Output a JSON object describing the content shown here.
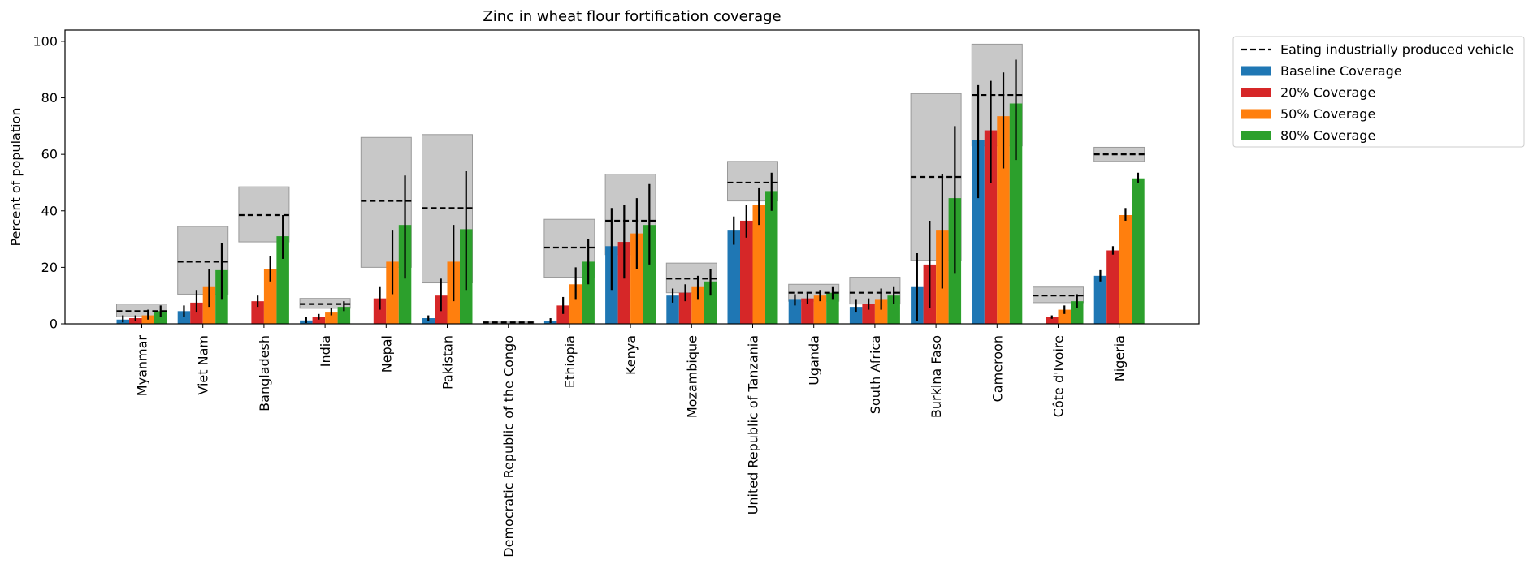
{
  "chart_data": {
    "type": "bar",
    "title": "Zinc in wheat flour fortification coverage",
    "xlabel": "",
    "ylabel": "Percent of population",
    "ylim": [
      0,
      104
    ],
    "yticks": [
      0,
      20,
      40,
      60,
      80,
      100
    ],
    "grid": false,
    "legend_position": "outside-top-right",
    "categories": [
      "Myanmar",
      "Viet Nam",
      "Bangladesh",
      "India",
      "Nepal",
      "Pakistan",
      "Democratic Republic of the Congo",
      "Ethiopia",
      "Kenya",
      "Mozambique",
      "United Republic of Tanzania",
      "Uganda",
      "South Africa",
      "Burkina Faso",
      "Cameroon",
      "Côte d'Ivoire",
      "Nigeria"
    ],
    "reference": {
      "name": "Eating industrially produced vehicle",
      "color": "#000000",
      "band_color": "#c8c8c8",
      "values": [
        4.5,
        22,
        38.5,
        7,
        43.5,
        41,
        0.5,
        27,
        36.5,
        16,
        50,
        11,
        11,
        52,
        81,
        10,
        60
      ],
      "lower": [
        2.5,
        10.5,
        29,
        5.5,
        20,
        14.5,
        0.3,
        16.5,
        24.5,
        11,
        43.5,
        8,
        7,
        22.5,
        63,
        7.5,
        57.5
      ],
      "upper": [
        7,
        34.5,
        48.5,
        9,
        66,
        67,
        0.9,
        37,
        53,
        21.5,
        57.5,
        14,
        16.5,
        81.5,
        99,
        13,
        62.5
      ]
    },
    "series": [
      {
        "name": "Baseline Coverage",
        "color": "#1f77b4",
        "values": [
          1.5,
          4.5,
          0,
          1.2,
          0,
          2,
          0,
          1,
          27.5,
          10,
          33,
          8.5,
          6,
          13,
          65,
          0,
          17
        ],
        "err_low": [
          0.5,
          2.5,
          0,
          0.3,
          0,
          1,
          0,
          0.3,
          12,
          7.5,
          28,
          6.5,
          4,
          1,
          44.5,
          0,
          15
        ],
        "err_high": [
          3,
          6.5,
          0,
          2.5,
          0,
          3,
          0,
          2,
          41,
          12.5,
          38,
          10.5,
          8.5,
          25,
          84.5,
          0,
          19
        ]
      },
      {
        "name": "20% Coverage",
        "color": "#d62728",
        "values": [
          2,
          7.5,
          8,
          2.5,
          9,
          10,
          0,
          6.5,
          29,
          11,
          36.5,
          9,
          7,
          21,
          68.5,
          2.5,
          26
        ],
        "err_low": [
          1,
          4,
          6,
          1.5,
          5,
          4.5,
          0,
          3.5,
          16,
          8,
          30.5,
          7,
          5,
          5.5,
          50,
          1.8,
          24.5
        ],
        "err_high": [
          3,
          12,
          10,
          3.5,
          13,
          16,
          0,
          9.5,
          42,
          14,
          42,
          11,
          9,
          36.5,
          86,
          3,
          27.5
        ]
      },
      {
        "name": "50% Coverage",
        "color": "#ff7f0e",
        "values": [
          3,
          13,
          19.5,
          4,
          22,
          22,
          0,
          14,
          32,
          13,
          42,
          10,
          8.5,
          33,
          73.5,
          5,
          38.5
        ],
        "err_low": [
          1.5,
          6,
          15,
          3,
          10.5,
          8,
          0,
          8.5,
          19.5,
          8.5,
          35,
          8,
          5,
          12.5,
          55,
          3.5,
          36.5
        ],
        "err_high": [
          5,
          19.5,
          24,
          5.5,
          33,
          35,
          0,
          20,
          44.5,
          17,
          48,
          12,
          12.5,
          53,
          89,
          6.5,
          41
        ]
      },
      {
        "name": "80% Coverage",
        "color": "#2ca02c",
        "values": [
          4.5,
          19,
          31,
          6,
          35,
          33.5,
          0,
          22,
          35,
          15,
          47,
          11,
          10,
          44.5,
          78,
          8,
          51.5
        ],
        "err_low": [
          2.5,
          8.5,
          23,
          4.5,
          16,
          12,
          0,
          14,
          21,
          10,
          40,
          8.5,
          7,
          18,
          58,
          5.5,
          50
        ],
        "err_high": [
          6.5,
          28.5,
          38.5,
          8,
          52.5,
          54,
          0,
          30,
          49.5,
          19.5,
          53.5,
          13,
          13,
          70,
          93.5,
          10.5,
          53.5
        ]
      }
    ]
  }
}
